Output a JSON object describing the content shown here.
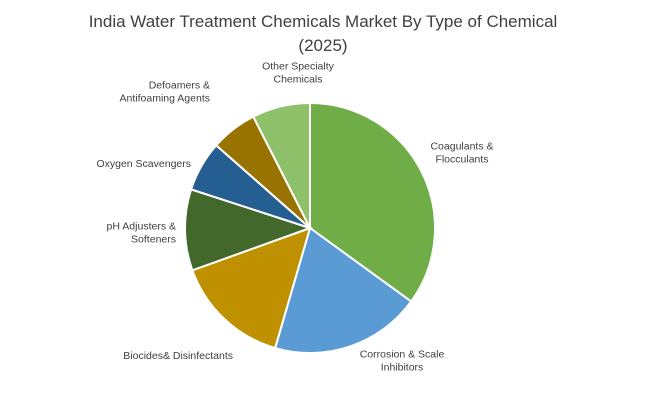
{
  "chart_data": {
    "type": "pie",
    "title_lines": [
      "India Water Treatment Chemicals Market By Type of Chemical",
      "(2025)"
    ],
    "start_angle_deg": 0,
    "direction": "clockwise",
    "legend": "none",
    "slices": [
      {
        "label_lines": [
          "Coagulants &",
          "Flocculants"
        ],
        "value": 35.0,
        "color": "#70AD47"
      },
      {
        "label_lines": [
          "Corrosion & Scale",
          "Inhibitors"
        ],
        "value": 19.5,
        "color": "#5B9BD5"
      },
      {
        "label_lines": [
          "Biocides& Disinfectants"
        ],
        "value": 15.0,
        "color": "#BF9000"
      },
      {
        "label_lines": [
          "pH Adjusters &",
          "Softeners"
        ],
        "value": 10.5,
        "color": "#43682B"
      },
      {
        "label_lines": [
          "Oxygen Scavengers"
        ],
        "value": 6.5,
        "color": "#255E91"
      },
      {
        "label_lines": [
          "Defoamers &",
          "Antifoaming Agents"
        ],
        "value": 6.0,
        "color": "#997300"
      },
      {
        "label_lines": [
          "Other Specialty",
          "Chemicals"
        ],
        "value": 7.5,
        "color": "#8FC16A"
      }
    ]
  }
}
